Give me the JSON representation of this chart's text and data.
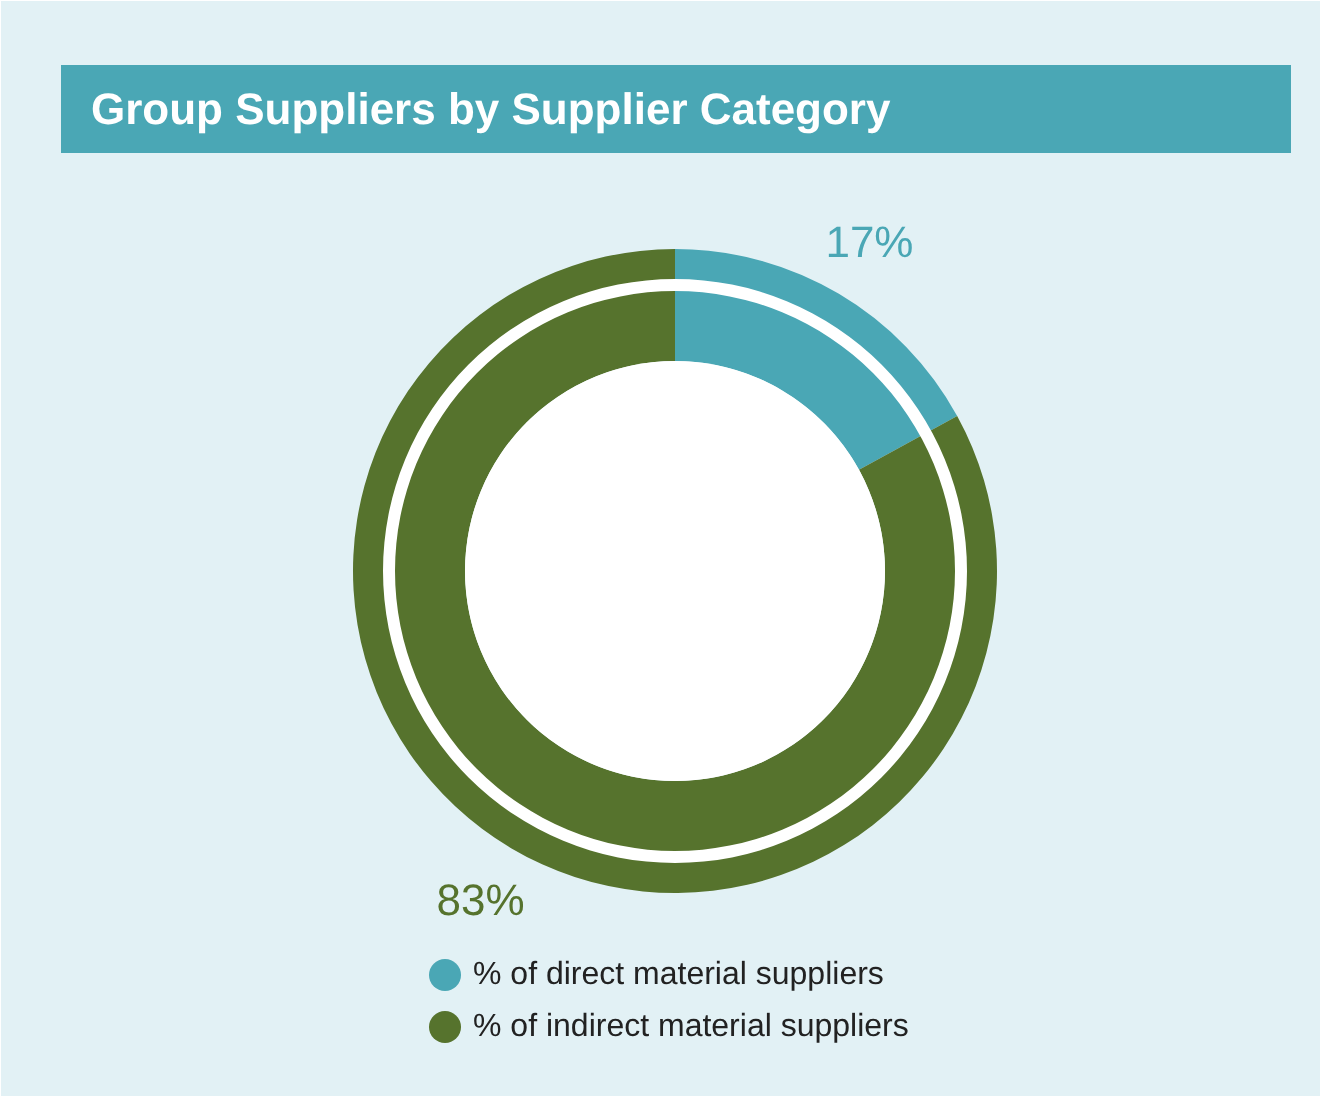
{
  "chart_data": {
    "type": "donut",
    "title": "Group Suppliers by Supplier Category",
    "categories": [
      "% of direct material suppliers",
      "% of indirect material suppliers"
    ],
    "values": [
      17,
      83
    ],
    "colors": [
      "#4aa7b5",
      "#56732d"
    ],
    "value_labels": [
      "17%",
      "83%"
    ],
    "legend": "bottom"
  }
}
